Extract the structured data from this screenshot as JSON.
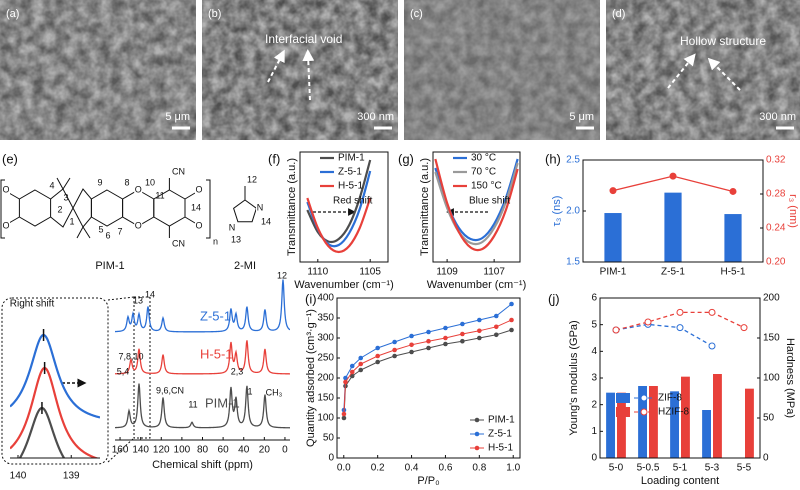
{
  "sem_images": [
    {
      "label": "(a)",
      "scale_bar": "5 μm"
    },
    {
      "label": "(b)",
      "scale_bar": "300 nm",
      "annotation": "Interfacial void"
    },
    {
      "label": "(c)",
      "scale_bar": "5 μm"
    },
    {
      "label": "(d)",
      "scale_bar": "300 nm",
      "annotation": "Hollow structure"
    }
  ],
  "structure": {
    "label": "(e)",
    "atom_numbers": [
      "9",
      "8",
      "10",
      "11",
      "4",
      "3",
      "2",
      "1",
      "5",
      "14",
      "6",
      "7"
    ],
    "oxygens": [
      "O",
      "O",
      "O",
      "O",
      "O",
      "O"
    ],
    "cyano": [
      "CN",
      "CN"
    ],
    "repeat": "n",
    "names": [
      "PIM-1",
      "2-MI"
    ],
    "mi_atoms": [
      "N",
      "N"
    ],
    "mi_numbers": [
      "12",
      "14",
      "13"
    ]
  },
  "chart_data": [
    {
      "type": "line",
      "label": "(f)",
      "xlabel": "Wavenumber (cm⁻¹)",
      "ylabel": "Transmittance (a.u.)",
      "x": [
        1111,
        1110,
        1109,
        1108,
        1107,
        1106,
        1105
      ],
      "xlim": [
        1111.7,
        1103.3
      ],
      "xticks": [
        1110,
        1105
      ],
      "ylim": [
        0,
        1.1
      ],
      "legend": "upper-center",
      "annotations": [
        "Red shift"
      ],
      "series": [
        {
          "name": "PIM-1",
          "color": "#4d4d4d",
          "values": [
            0.52,
            0.3,
            0.205,
            0.23,
            0.37,
            0.64,
            1.02
          ]
        },
        {
          "name": "Z-5-1",
          "color": "#2b6fd6",
          "values": [
            0.6,
            0.33,
            0.18,
            0.17,
            0.29,
            0.53,
            0.91
          ]
        },
        {
          "name": "H-5-1",
          "color": "#e8403a",
          "values": [
            0.64,
            0.34,
            0.16,
            0.1,
            0.16,
            0.34,
            0.64
          ]
        }
      ]
    },
    {
      "type": "line",
      "label": "(g)",
      "xlabel": "Wavenumber (cm⁻¹)",
      "ylabel": "Transmittance (a.u.)",
      "x": [
        1109.5,
        1109,
        1108.5,
        1108,
        1107.5,
        1107,
        1106.5,
        1106
      ],
      "xlim": [
        1109.6,
        1105.9
      ],
      "xticks": [
        1109,
        1107
      ],
      "ylim": [
        0,
        1.1
      ],
      "legend": "upper-center",
      "annotations": [
        "Blue shift"
      ],
      "series": [
        {
          "name": "30 °C",
          "color": "#2b6fd6",
          "values": [
            0.94,
            0.58,
            0.34,
            0.23,
            0.24,
            0.38,
            0.64,
            1.03
          ]
        },
        {
          "name": "70 °C",
          "color": "#9a9a9a",
          "values": [
            0.9,
            0.54,
            0.3,
            0.19,
            0.2,
            0.34,
            0.6,
            0.99
          ]
        },
        {
          "name": "150 °C",
          "color": "#e8403a",
          "values": [
            1.03,
            0.59,
            0.3,
            0.145,
            0.13,
            0.26,
            0.52,
            0.93
          ]
        }
      ]
    },
    {
      "type": "bar",
      "label": "(h)",
      "ylabel": "τ₃ (ns)",
      "y2label": "r₃ (nm)",
      "categories": [
        "PIM-1",
        "Z-5-1",
        "H-5-1"
      ],
      "ylim": [
        1.5,
        2.5
      ],
      "yticks": [
        1.5,
        {
          "value": 2,
          "label": "2.0"
        },
        2.5
      ],
      "y2lim": [
        0.2,
        0.32
      ],
      "y2ticks": [
        {
          "value": 0.2,
          "label": "0.20"
        },
        {
          "value": 0.24,
          "label": "0.24"
        },
        {
          "value": 0.28,
          "label": "0.28"
        },
        {
          "value": 0.32,
          "label": "0.32"
        }
      ],
      "series": [
        {
          "color": "#2b6fd6",
          "values": [
            1.98,
            2.18,
            1.97
          ]
        },
        {
          "color": "#e8403a",
          "axis": "y2",
          "values": [
            0.284,
            0.301,
            0.283
          ]
        }
      ]
    },
    {
      "type": "spectrum",
      "xlabel": "Chemical shift (ppm)",
      "xlim": [
        164.9,
        -4.9
      ],
      "xticks": [
        160,
        140,
        120,
        100,
        80,
        60,
        40,
        20,
        0
      ],
      "annotations": [
        "13",
        "14",
        "12",
        "7,8,10",
        "5,4",
        "9,6,CN",
        "11",
        "2,3",
        "1",
        "CH₃"
      ],
      "series": [
        {
          "name": "Z-5-1",
          "color": "#2b6fd6",
          "peaks": [
            152.3,
            147.4,
            141.6,
            132.9,
            118.3,
            52.4,
            47.5,
            36.9,
            19.4,
            1.9
          ],
          "heights": [
            0.25,
            0.3,
            0.3,
            0.45,
            0.25,
            0.4,
            0.3,
            0.45,
            0.4,
            0.95
          ]
        },
        {
          "name": "H-5-1",
          "color": "#e8403a",
          "peaks": [
            149.4,
            141.6,
            118.3,
            52.4,
            47.5,
            36.9,
            19.4
          ],
          "heights": [
            0.25,
            0.45,
            0.35,
            0.55,
            0.35,
            0.6,
            0.45
          ]
        },
        {
          "name": "PIM-1",
          "color": "#4d4d4d",
          "peaks": [
            151.3,
            141.6,
            118.3,
            90.2,
            52.4,
            47.5,
            36.9,
            19.4
          ],
          "heights": [
            0.3,
            0.8,
            0.55,
            0.1,
            0.7,
            0.5,
            0.75,
            0.6
          ]
        }
      ]
    },
    {
      "type": "spectrum",
      "xlim": [
        140.15,
        138.46
      ],
      "xticks": [
        140,
        139
      ],
      "annotations": [
        "Right shift"
      ],
      "series": [
        {
          "color": "#2b6fd6",
          "peaks": [
            139.52
          ],
          "heights": [
            0.9
          ]
        },
        {
          "color": "#e8403a",
          "peaks": [
            139.5
          ],
          "heights": [
            1.0
          ]
        },
        {
          "color": "#4d4d4d",
          "peaks": [
            139.55
          ],
          "heights": [
            0.8
          ]
        }
      ]
    },
    {
      "type": "line",
      "label": "(i)",
      "xlabel": "P/P₀",
      "ylabel": "Quantity adsorbed (cm³·g⁻¹)",
      "markers": true,
      "legend": "lower-right",
      "x": [
        0.001,
        0.01,
        0.05,
        0.1,
        0.2,
        0.3,
        0.4,
        0.5,
        0.6,
        0.7,
        0.8,
        0.9,
        0.99
      ],
      "xlim": [
        -0.04,
        1.04
      ],
      "xticks": [
        {
          "value": 0,
          "label": "0.0"
        },
        0.2,
        0.4,
        0.6,
        0.8,
        {
          "value": 1,
          "label": "1.0"
        }
      ],
      "ylim": [
        0,
        400
      ],
      "yticks": [
        0,
        50,
        100,
        150,
        200,
        250,
        300,
        350,
        400
      ],
      "series": [
        {
          "name": "PIM-1",
          "color": "#4d4d4d",
          "values": [
            100,
            180,
            205,
            220,
            240,
            255,
            265,
            275,
            285,
            292,
            300,
            308,
            320
          ]
        },
        {
          "name": "Z-5-1",
          "color": "#2b6fd6",
          "values": [
            120,
            200,
            230,
            250,
            275,
            290,
            305,
            315,
            325,
            335,
            345,
            355,
            385
          ]
        },
        {
          "name": "H-5-1",
          "color": "#e8403a",
          "values": [
            110,
            190,
            215,
            235,
            255,
            270,
            283,
            292,
            300,
            310,
            318,
            328,
            345
          ]
        }
      ]
    },
    {
      "type": "bar",
      "label": "(j)",
      "xlabel": "Loading content",
      "ylabel": "Young's modulus (GPa)",
      "y2label": "Hardness (MPa)",
      "legend": "center-left",
      "categories": [
        "5-0",
        "5-0.5",
        "5-1",
        "5-3",
        "5-5"
      ],
      "ylim": [
        0,
        6
      ],
      "yticks": [
        0,
        1,
        2,
        3,
        4,
        5,
        6
      ],
      "y2lim": [
        0,
        200
      ],
      "y2ticks": [
        0,
        50,
        100,
        150,
        200
      ],
      "series": [
        {
          "name": "ZIF-8",
          "color": "#2b6fd6",
          "values": [
            2.45,
            2.7,
            2.5,
            1.8,
            null
          ]
        },
        {
          "name": "HZIF-8",
          "color": "#e8403a",
          "values": [
            2.45,
            2.7,
            3.05,
            3.15,
            2.6
          ]
        },
        {
          "color": "#2b6fd6",
          "axis": "y2",
          "line_style": "dashed",
          "values": [
            160,
            167,
            163,
            140,
            null
          ]
        },
        {
          "color": "#e8403a",
          "axis": "y2",
          "line_style": "dashed",
          "values": [
            160,
            170,
            182,
            182,
            163
          ]
        }
      ]
    }
  ]
}
